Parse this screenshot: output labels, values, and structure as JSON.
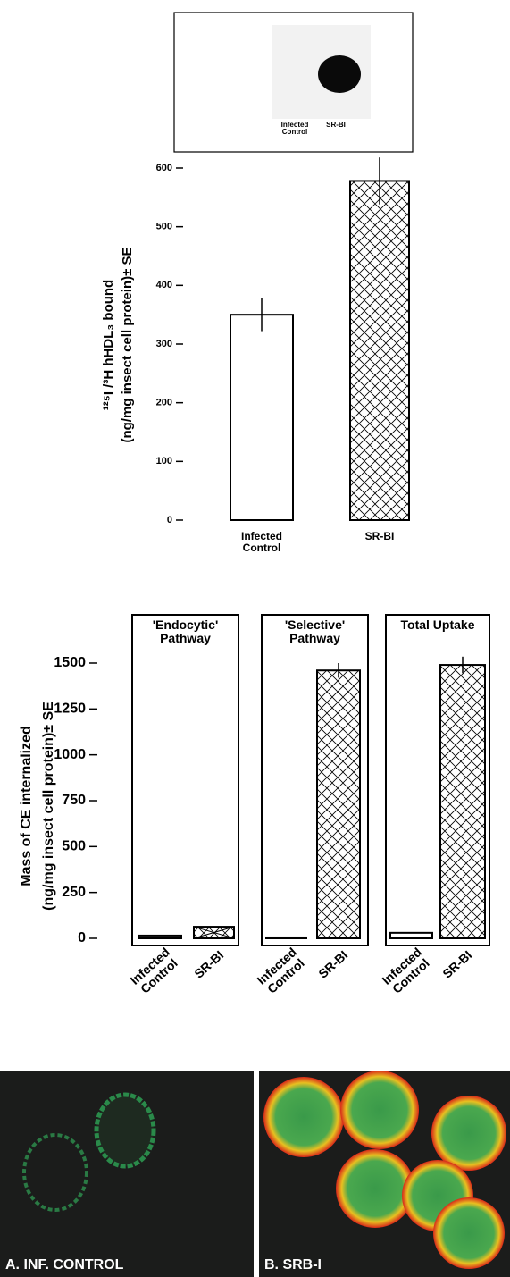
{
  "blot": {
    "labels": [
      "Infected Control",
      "SR-BI"
    ]
  },
  "chart_data": [
    {
      "type": "bar",
      "ylabel": [
        "¹²⁵I /³H hHDL₃ bound",
        "(ng/mg insect cell protein)± SE"
      ],
      "categories": [
        "Infected Control",
        "SR-BI"
      ],
      "values": [
        350,
        578
      ],
      "errors": [
        28,
        40
      ],
      "ylim": [
        0,
        600
      ],
      "yticks": [
        0,
        100,
        200,
        300,
        400,
        500,
        600
      ]
    },
    {
      "type": "bar-panels",
      "ylabel": [
        "Mass of CE internalized",
        "(ng/mg insect cell protein)± SE"
      ],
      "ylim": [
        0,
        1500
      ],
      "yticks": [
        0,
        250,
        500,
        750,
        1000,
        1250,
        1500
      ],
      "panels": [
        {
          "title": "'Endocytic' Pathway",
          "categories": [
            "Infected Control",
            "SR-BI"
          ],
          "values": [
            15,
            63
          ],
          "errors": [
            null,
            null
          ]
        },
        {
          "title": "'Selective' Pathway",
          "categories": [
            "Infected Control",
            "SR-BI"
          ],
          "values": [
            5,
            1460
          ],
          "errors": [
            null,
            40
          ]
        },
        {
          "title": "Total Uptake",
          "categories": [
            "Infected Control",
            "SR-BI"
          ],
          "values": [
            30,
            1490
          ],
          "errors": [
            null,
            45
          ]
        }
      ]
    }
  ],
  "micrographs": {
    "captions": [
      "A. INF. CONTROL",
      "B. SRB-I"
    ]
  }
}
